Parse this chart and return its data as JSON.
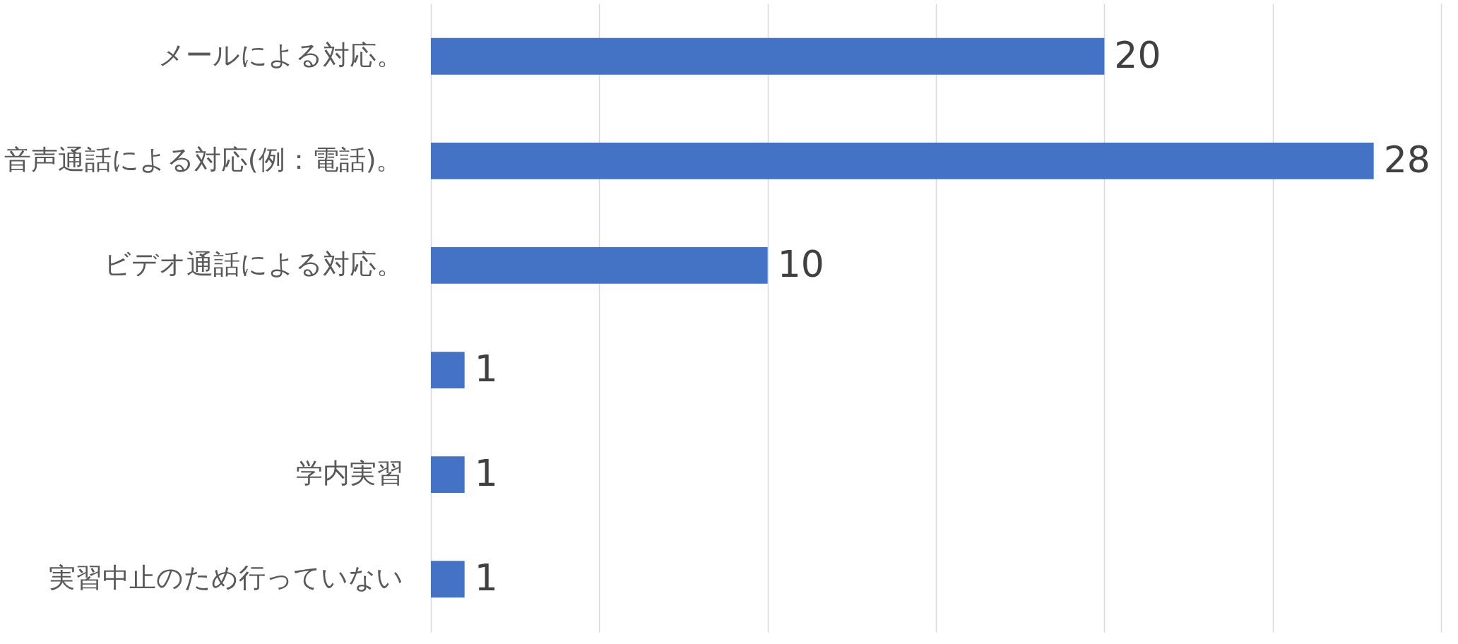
{
  "chart_data": {
    "type": "bar",
    "orientation": "horizontal",
    "categories": [
      "メールによる対応。",
      "音声通話による対応(例：電話)。",
      "ビデオ通話による対応。",
      null,
      "学内実習",
      "実習中止のため行っていない"
    ],
    "values": [
      20,
      28,
      10,
      1,
      1,
      1
    ],
    "color": "#4472c4",
    "xlim": [
      0,
      30
    ],
    "xticks": [
      {
        "value": 0,
        "label": null
      },
      {
        "value": 5,
        "label": null
      },
      {
        "value": 10,
        "label": null
      },
      {
        "value": 15,
        "label": null
      },
      {
        "value": 20,
        "label": null
      },
      {
        "value": 25,
        "label": null
      },
      {
        "value": 30,
        "label": null
      }
    ],
    "tick_labels": "y",
    "grid": "x",
    "data_labels": true
  }
}
